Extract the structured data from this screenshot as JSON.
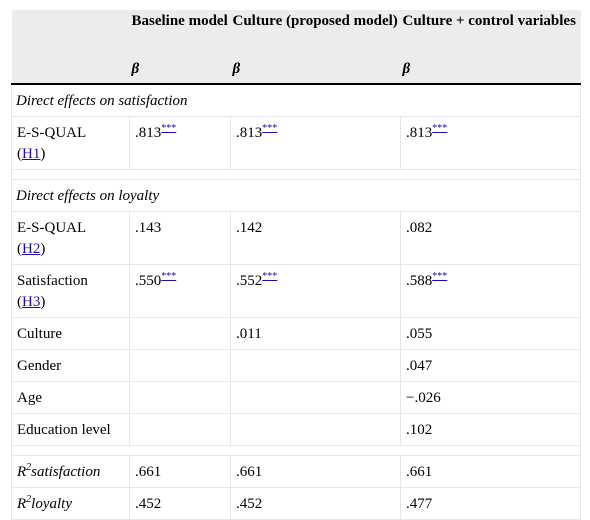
{
  "header": {
    "col2": "Baseline model",
    "col3": "Culture (proposed model)",
    "col4": "Culture + control variables",
    "beta": "β"
  },
  "sections": {
    "satisfaction": "Direct effects on satisfaction",
    "loyalty": "Direct effects on loyalty"
  },
  "rows": {
    "esqual_sat": {
      "label": "E-S-QUAL",
      "hyp": "H1",
      "v1": ".813",
      "v2": ".813",
      "v3": ".813",
      "sig": "***"
    },
    "esqual_loy": {
      "label": "E-S-QUAL",
      "hyp": "H2",
      "v1": ".143",
      "v2": ".142",
      "v3": ".082"
    },
    "satisfaction": {
      "label": "Satisfaction",
      "hyp": "H3",
      "v1": ".550",
      "v2": ".552",
      "v3": ".588",
      "sig": "***"
    },
    "culture": {
      "label": "Culture",
      "v1": "",
      "v2": ".011",
      "v3": ".055"
    },
    "gender": {
      "label": "Gender",
      "v1": "",
      "v2": "",
      "v3": ".047"
    },
    "age": {
      "label": "Age",
      "v1": "",
      "v2": "",
      "v3": "−.026"
    },
    "education": {
      "label": "Education level",
      "v1": "",
      "v2": "",
      "v3": ".102"
    },
    "r2_sat": {
      "r": "R",
      "sup": "2",
      "label": "satisfaction",
      "v1": ".661",
      "v2": ".661",
      "v3": ".661"
    },
    "r2_loy": {
      "r": "R",
      "sup": "2",
      "label": "loyalty",
      "v1": ".452",
      "v2": ".452",
      "v3": ".477"
    }
  },
  "paren_open": "(",
  "paren_close": ")"
}
